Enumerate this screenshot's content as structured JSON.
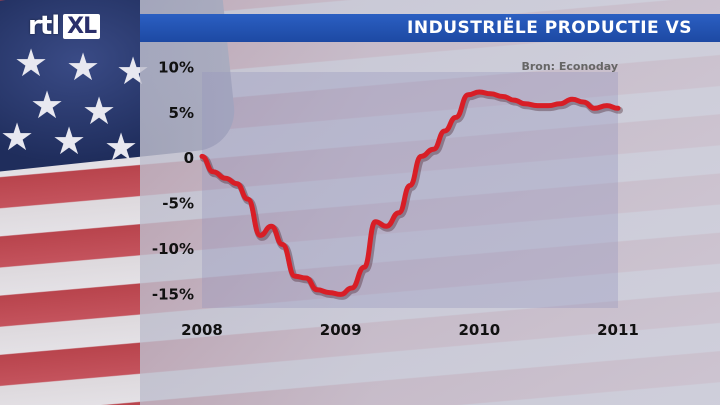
{
  "header": {
    "logo_main": "rtl",
    "logo_sub": "XL",
    "title": "INDUSTRIËLE PRODUCTIE VS"
  },
  "source_label": "Bron: Econoday",
  "colors": {
    "title_bar": "#1f4ea8",
    "line": "#d81e26",
    "plot_panel": "#a7a7cc"
  },
  "chart_data": {
    "type": "line",
    "title": "INDUSTRIËLE PRODUCTIE VS",
    "xlabel": "",
    "ylabel": "",
    "x_ticks": [
      "2008",
      "2009",
      "2010",
      "2011"
    ],
    "y_ticks": [
      "10%",
      "5%",
      "0",
      "-5%",
      "-10%",
      "-15%"
    ],
    "y_tick_values": [
      10,
      5,
      0,
      -5,
      -10,
      -15
    ],
    "xlim": [
      2008,
      2011
    ],
    "ylim": [
      -16.5,
      9.5
    ],
    "grid": false,
    "series": [
      {
        "name": "",
        "x": [
          2008.0,
          2008.08,
          2008.17,
          2008.25,
          2008.33,
          2008.42,
          2008.5,
          2008.58,
          2008.67,
          2008.75,
          2008.83,
          2008.92,
          2009.0,
          2009.08,
          2009.17,
          2009.25,
          2009.33,
          2009.42,
          2009.5,
          2009.58,
          2009.67,
          2009.75,
          2009.83,
          2009.92,
          2010.0,
          2010.08,
          2010.17,
          2010.25,
          2010.33,
          2010.42,
          2010.5,
          2010.58,
          2010.67,
          2010.75,
          2010.83,
          2010.92,
          2011.0
        ],
        "values": [
          0.2,
          -1.5,
          -2.2,
          -2.8,
          -4.5,
          -8.5,
          -7.5,
          -9.5,
          -13.0,
          -13.2,
          -14.5,
          -14.8,
          -15.0,
          -14.3,
          -12.0,
          -7.0,
          -7.5,
          -6.0,
          -3.0,
          0.2,
          1.0,
          3.0,
          4.5,
          7.0,
          7.3,
          7.1,
          6.8,
          6.4,
          6.0,
          5.8,
          5.8,
          6.0,
          6.5,
          6.2,
          5.5,
          5.8,
          5.5
        ]
      }
    ]
  }
}
